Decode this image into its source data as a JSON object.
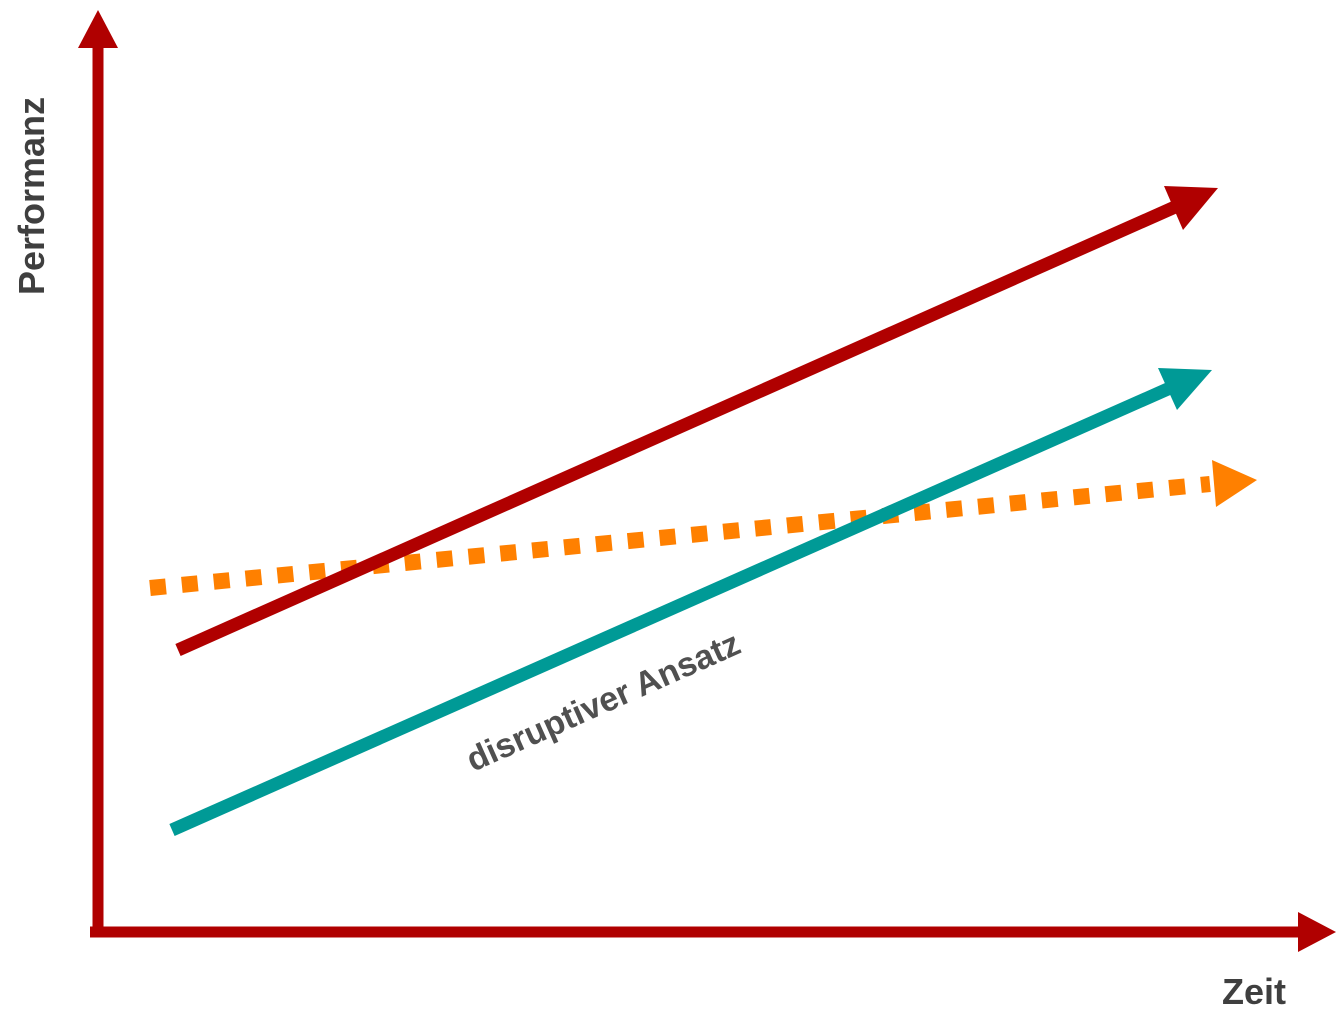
{
  "diagram": {
    "y_axis_label": "Performanz",
    "x_axis_label": "Zeit",
    "colors": {
      "axes": "#b00000",
      "upper_trend": "#b00000",
      "disruptive": "#009a96",
      "demand": "#ff8000",
      "label_text": "#505050"
    },
    "lines": [
      {
        "id": "upper-trend",
        "style": "solid"
      },
      {
        "id": "disruptive",
        "style": "solid",
        "label": "disruptiver Ansatz"
      },
      {
        "id": "demand",
        "style": "dotted"
      }
    ]
  }
}
